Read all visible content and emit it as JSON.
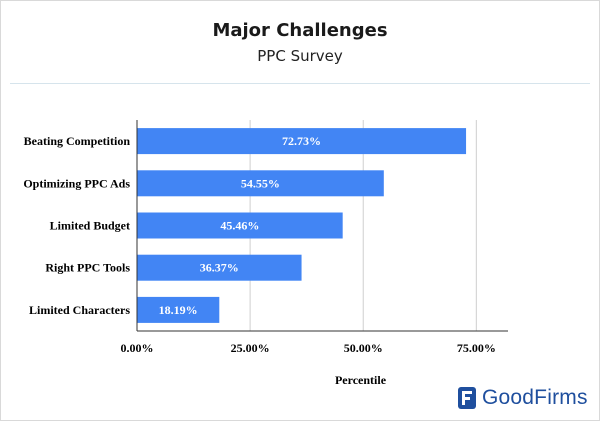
{
  "chart_data": {
    "type": "bar",
    "orientation": "horizontal",
    "title": "Major Challenges",
    "subtitle": "PPC Survey",
    "xlabel": "Percentile",
    "ylabel": "",
    "categories": [
      "Beating Competition",
      "Optimizing PPC Ads",
      "Limited Budget",
      "Right  PPC Tools",
      "Limited Characters"
    ],
    "values": [
      72.73,
      54.55,
      45.46,
      36.37,
      18.19
    ],
    "value_labels": [
      "72.73%",
      "54.55%",
      "45.46%",
      "36.37%",
      "18.19%"
    ],
    "xlim": [
      0,
      82
    ],
    "x_ticks": [
      0,
      25,
      50,
      75
    ],
    "x_tick_labels": [
      "0.00%",
      "25.00%",
      "50.00%",
      "75.00%"
    ],
    "grid": "vertical",
    "bar_color": "#4285f4",
    "legend": "none"
  },
  "brand": {
    "name": "GoodFirms",
    "color": "#1f4f9e",
    "icon": "goodfirms-logo-icon"
  }
}
